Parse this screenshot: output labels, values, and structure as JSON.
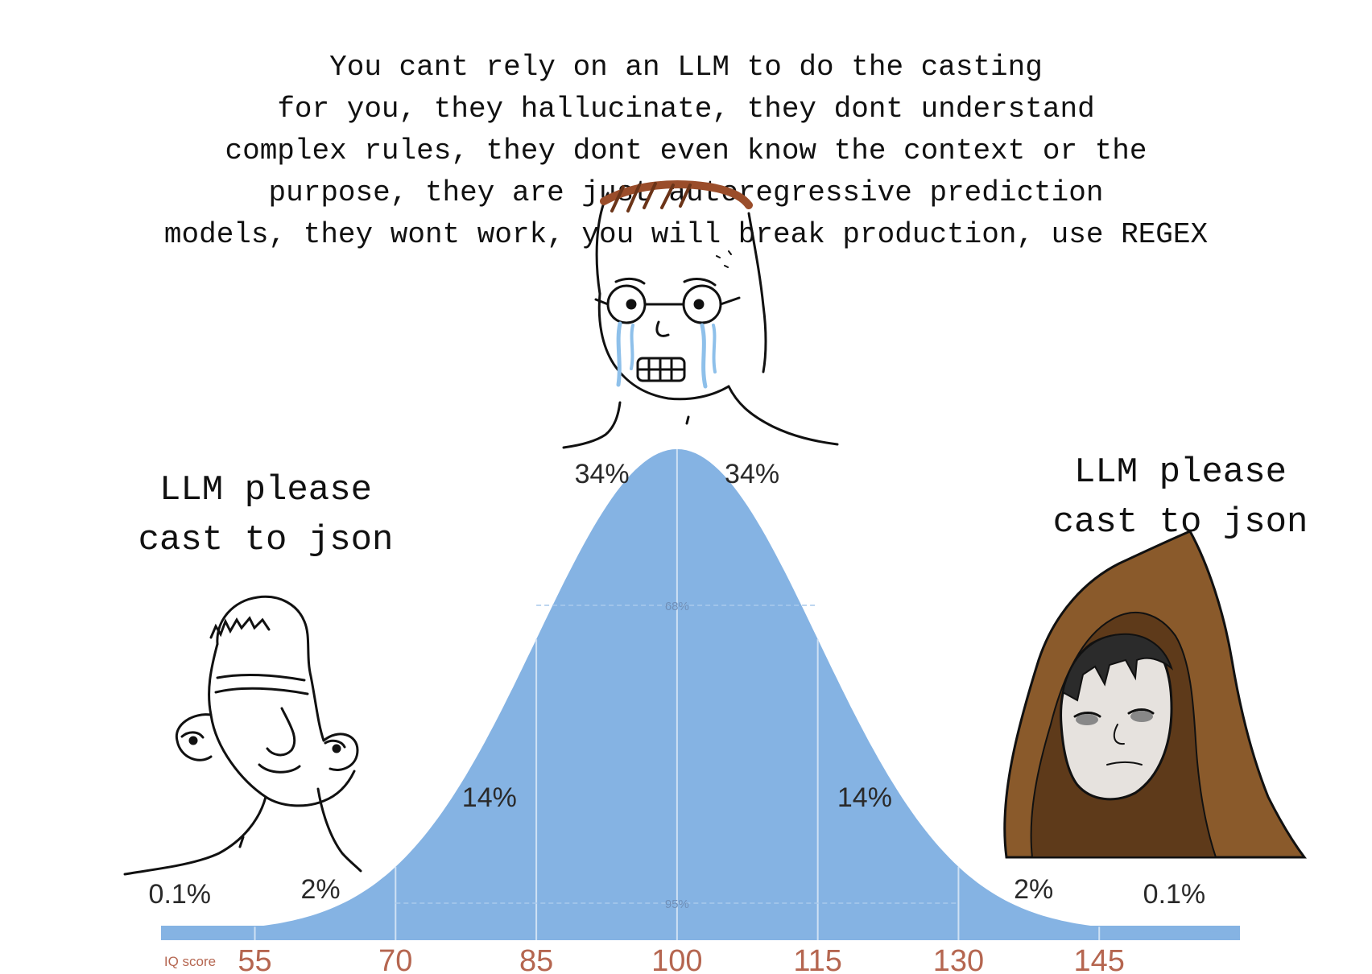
{
  "captions": {
    "top": "You cant rely on an LLM to do the casting\nfor you, they hallucinate, they dont understand\ncomplex rules, they dont even know the context or the\npurpose, they are just autoregressive prediction\nmodels, they wont work, you will break production, use REGEX",
    "left": "LLM please\ncast to json",
    "right": "LLM please\ncast to json"
  },
  "chart_data": {
    "type": "area",
    "title": "",
    "xlabel": "IQ score",
    "ylabel": "",
    "x_ticks": [
      55,
      70,
      85,
      100,
      115,
      130,
      145
    ],
    "mean": 100,
    "sd": 15,
    "xlim": [
      45,
      160
    ],
    "band_labels": [
      "0.1%",
      "2%",
      "14%",
      "34%",
      "34%",
      "14%",
      "2%",
      "0.1%"
    ],
    "inner_labels": {
      "one_sd": "68%",
      "two_sd": "95%"
    },
    "fill_color": "#85b3e3"
  },
  "characters": [
    {
      "role": "low-iq",
      "icon": "wojak-bald-icon"
    },
    {
      "role": "mid-iq",
      "icon": "wojak-crying-glasses-icon"
    },
    {
      "role": "high-iq",
      "icon": "hooded-monk-icon"
    }
  ]
}
